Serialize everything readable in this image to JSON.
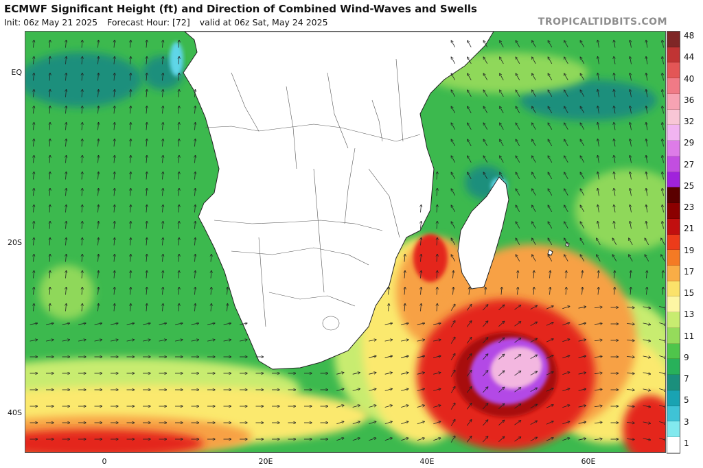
{
  "header": {
    "title": "ECMWF Significant Height (ft) and Direction of Combined Wind-Waves and Swells",
    "init": "Init: 06z May 21 2025",
    "forecast_hour": "Forecast Hour: [72]",
    "valid": "valid at 06z Sat, May 24 2025",
    "brand": "TROPICALTIDBITS.COM"
  },
  "axes": {
    "lat_labels": [
      "EQ",
      "20S",
      "40S"
    ],
    "lon_labels": [
      "0",
      "20E",
      "40E",
      "60E"
    ]
  },
  "colorbar": {
    "labels": [
      "48",
      "44",
      "40",
      "36",
      "32",
      "29",
      "27",
      "25",
      "23",
      "21",
      "19",
      "17",
      "15",
      "13",
      "11",
      "9",
      "7",
      "5",
      "3",
      "1"
    ],
    "colors": [
      "#7f2626",
      "#c03434",
      "#e35656",
      "#f07a86",
      "#f7a3b3",
      "#f8c6d6",
      "#f1b4f1",
      "#dd7ce8",
      "#c24ee0",
      "#a022dc",
      "#5a0000",
      "#8b0000",
      "#c10f0f",
      "#ec3b1a",
      "#f47a24",
      "#f9ad46",
      "#fbe26a",
      "#fdf6a4",
      "#c8ec70",
      "#95db5b",
      "#4fc54b",
      "#28b15a",
      "#1b8f7c",
      "#19a3b2",
      "#3fc3d6",
      "#82e9ee",
      "#ffffff"
    ]
  },
  "map": {
    "colors": {
      "land": "#ffffff",
      "border": "#222222",
      "deep": "#1b8f7c",
      "green": "#3cb94e",
      "lightgreen": "#8fd85a",
      "lime": "#c8ec70",
      "yellow": "#fbe96e",
      "orange": "#f7a145",
      "red": "#e4261b",
      "darkred": "#a80d0d",
      "purple": "#b34ae6",
      "pink": "#f3b7e0",
      "cyan": "#5ed6e8"
    }
  }
}
